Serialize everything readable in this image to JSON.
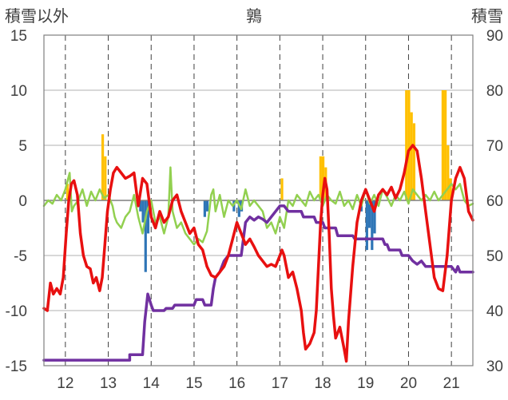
{
  "chart_data": {
    "type": "line",
    "title": "鶉",
    "left_axis_label": "積雪以外",
    "right_axis_label": "積雪",
    "y_left": {
      "min": -15,
      "max": 15,
      "ticks": [
        "-15",
        "-10",
        "-5",
        "0",
        "5",
        "10",
        "15"
      ]
    },
    "y_right": {
      "min": 30,
      "max": 90,
      "ticks": [
        "30",
        "40",
        "50",
        "60",
        "70",
        "80",
        "90"
      ]
    },
    "x": {
      "min": 11.5,
      "max": 21.5,
      "ticks": [
        "12",
        "13",
        "14",
        "15",
        "16",
        "17",
        "18",
        "19",
        "20",
        "21"
      ]
    },
    "grid": {
      "horizontal": true,
      "vertical_dashed": true
    },
    "series": [
      {
        "color": "#e81010",
        "axis": "left",
        "points": [
          [
            11.5,
            -9.8
          ],
          [
            11.58,
            -10
          ],
          [
            11.65,
            -7.5
          ],
          [
            11.72,
            -8.5
          ],
          [
            11.8,
            -8
          ],
          [
            11.88,
            -8.5
          ],
          [
            11.95,
            -7
          ],
          [
            12.02,
            -3
          ],
          [
            12.08,
            0
          ],
          [
            12.14,
            1.5
          ],
          [
            12.2,
            1.8
          ],
          [
            12.28,
            0.5
          ],
          [
            12.35,
            -3
          ],
          [
            12.42,
            -5
          ],
          [
            12.5,
            -6
          ],
          [
            12.58,
            -6.2
          ],
          [
            12.65,
            -7.5
          ],
          [
            12.72,
            -7
          ],
          [
            12.8,
            -8.2
          ],
          [
            12.86,
            -7
          ],
          [
            12.92,
            -4
          ],
          [
            12.98,
            -1
          ],
          [
            13.05,
            1
          ],
          [
            13.12,
            2.5
          ],
          [
            13.2,
            3
          ],
          [
            13.3,
            2.5
          ],
          [
            13.4,
            2
          ],
          [
            13.5,
            2.2
          ],
          [
            13.6,
            2.5
          ],
          [
            13.7,
            -0.5
          ],
          [
            13.8,
            2
          ],
          [
            13.9,
            1.5
          ],
          [
            14.0,
            -1.5
          ],
          [
            14.1,
            -2.5
          ],
          [
            14.2,
            -1
          ],
          [
            14.3,
            -2
          ],
          [
            14.4,
            -1.5
          ],
          [
            14.5,
            0
          ],
          [
            14.6,
            0.5
          ],
          [
            14.7,
            -1
          ],
          [
            14.8,
            -2
          ],
          [
            14.9,
            -3
          ],
          [
            15.0,
            -2.5
          ],
          [
            15.1,
            -4
          ],
          [
            15.2,
            -4.5
          ],
          [
            15.3,
            -6
          ],
          [
            15.4,
            -6.8
          ],
          [
            15.5,
            -7
          ],
          [
            15.6,
            -6.5
          ],
          [
            15.7,
            -6
          ],
          [
            15.8,
            -5
          ],
          [
            15.9,
            -3.5
          ],
          [
            16.0,
            -2
          ],
          [
            16.1,
            -3
          ],
          [
            16.2,
            -4
          ],
          [
            16.3,
            -3.5
          ],
          [
            16.4,
            -4.2
          ],
          [
            16.5,
            -5
          ],
          [
            16.6,
            -5.5
          ],
          [
            16.7,
            -6
          ],
          [
            16.8,
            -5.8
          ],
          [
            16.9,
            -6
          ],
          [
            17.0,
            -5
          ],
          [
            17.05,
            -4.5
          ],
          [
            17.1,
            -5
          ],
          [
            17.2,
            -7
          ],
          [
            17.3,
            -6.5
          ],
          [
            17.4,
            -8
          ],
          [
            17.5,
            -10
          ],
          [
            17.55,
            -12
          ],
          [
            17.6,
            -13.5
          ],
          [
            17.7,
            -13
          ],
          [
            17.8,
            -12
          ],
          [
            17.85,
            -10
          ],
          [
            17.9,
            -6
          ],
          [
            17.95,
            -2
          ],
          [
            18.0,
            0.5
          ],
          [
            18.05,
            2
          ],
          [
            18.1,
            1
          ],
          [
            18.15,
            -3
          ],
          [
            18.2,
            -8
          ],
          [
            18.25,
            -10.5
          ],
          [
            18.3,
            -12.5
          ],
          [
            18.4,
            -11.5
          ],
          [
            18.5,
            -13.5
          ],
          [
            18.55,
            -14.6
          ],
          [
            18.6,
            -11
          ],
          [
            18.7,
            -6
          ],
          [
            18.8,
            -2
          ],
          [
            18.9,
            0
          ],
          [
            19.0,
            1
          ],
          [
            19.1,
            0
          ],
          [
            19.2,
            -1
          ],
          [
            19.3,
            0.5
          ],
          [
            19.4,
            1
          ],
          [
            19.5,
            0.5
          ],
          [
            19.6,
            1.2
          ],
          [
            19.7,
            0.2
          ],
          [
            19.8,
            1
          ],
          [
            19.9,
            2.5
          ],
          [
            20.0,
            4.5
          ],
          [
            20.1,
            5
          ],
          [
            20.2,
            4.5
          ],
          [
            20.3,
            2
          ],
          [
            20.4,
            -1
          ],
          [
            20.5,
            -4
          ],
          [
            20.6,
            -7
          ],
          [
            20.7,
            -8
          ],
          [
            20.8,
            -8.2
          ],
          [
            20.9,
            -5
          ],
          [
            21.0,
            0
          ],
          [
            21.1,
            2
          ],
          [
            21.2,
            3
          ],
          [
            21.3,
            2
          ],
          [
            21.4,
            -1
          ],
          [
            21.5,
            -1.8
          ]
        ]
      },
      {
        "color": "#7030a0",
        "axis": "left",
        "points": [
          [
            11.5,
            -14.5
          ],
          [
            13.5,
            -14.5
          ],
          [
            13.5,
            -14
          ],
          [
            13.8,
            -14
          ],
          [
            13.85,
            -11
          ],
          [
            13.92,
            -8.5
          ],
          [
            14.0,
            -9.5
          ],
          [
            14.05,
            -10
          ],
          [
            14.3,
            -10
          ],
          [
            14.35,
            -9.8
          ],
          [
            14.5,
            -9.8
          ],
          [
            14.55,
            -9.5
          ],
          [
            15.0,
            -9.5
          ],
          [
            15.05,
            -9
          ],
          [
            15.2,
            -9
          ],
          [
            15.25,
            -9.5
          ],
          [
            15.4,
            -9.5
          ],
          [
            15.45,
            -8
          ],
          [
            15.5,
            -7
          ],
          [
            15.6,
            -6.5
          ],
          [
            15.7,
            -5.5
          ],
          [
            15.8,
            -5
          ],
          [
            16.1,
            -5
          ],
          [
            16.15,
            -3.5
          ],
          [
            16.2,
            -2
          ],
          [
            16.3,
            -1.5
          ],
          [
            16.4,
            -1.8
          ],
          [
            16.5,
            -1.5
          ],
          [
            16.6,
            -1.7
          ],
          [
            16.7,
            -2
          ],
          [
            16.8,
            -1.5
          ],
          [
            16.9,
            -1
          ],
          [
            17.0,
            -0.5
          ],
          [
            17.1,
            -0.5
          ],
          [
            17.2,
            -1
          ],
          [
            17.5,
            -1
          ],
          [
            17.55,
            -1.5
          ],
          [
            17.8,
            -1.5
          ],
          [
            17.85,
            -2
          ],
          [
            18.0,
            -2
          ],
          [
            18.05,
            -2.5
          ],
          [
            18.3,
            -2.5
          ],
          [
            18.35,
            -3.2
          ],
          [
            18.7,
            -3.2
          ],
          [
            18.75,
            -3.5
          ],
          [
            19.4,
            -3.5
          ],
          [
            19.45,
            -4
          ],
          [
            19.5,
            -4
          ],
          [
            19.55,
            -4.5
          ],
          [
            19.8,
            -4.5
          ],
          [
            19.85,
            -5
          ],
          [
            20.0,
            -5
          ],
          [
            20.1,
            -5.5
          ],
          [
            20.2,
            -5.8
          ],
          [
            20.3,
            -5.5
          ],
          [
            20.4,
            -6
          ],
          [
            21.0,
            -6
          ],
          [
            21.1,
            -6.5
          ],
          [
            21.15,
            -6
          ],
          [
            21.2,
            -6.5
          ],
          [
            21.5,
            -6.5
          ]
        ]
      },
      {
        "color": "#92d050",
        "axis": "left",
        "points": [
          [
            11.5,
            -0.5
          ],
          [
            11.6,
            0
          ],
          [
            11.7,
            -0.3
          ],
          [
            11.8,
            0.5
          ],
          [
            11.9,
            0
          ],
          [
            12.0,
            1
          ],
          [
            12.1,
            2.5
          ],
          [
            12.15,
            -1
          ],
          [
            12.2,
            -0.5
          ],
          [
            12.3,
            0
          ],
          [
            12.4,
            1
          ],
          [
            12.5,
            -0.5
          ],
          [
            12.6,
            0.8
          ],
          [
            12.7,
            0
          ],
          [
            12.8,
            1
          ],
          [
            12.9,
            0.2
          ],
          [
            13.0,
            0.5
          ],
          [
            13.1,
            -0.5
          ],
          [
            13.15,
            -1.5
          ],
          [
            13.2,
            -2
          ],
          [
            13.3,
            -2.5
          ],
          [
            13.4,
            -1.5
          ],
          [
            13.5,
            -1
          ],
          [
            13.6,
            0.5
          ],
          [
            13.7,
            -1.5
          ],
          [
            13.8,
            -3
          ],
          [
            13.9,
            -1
          ],
          [
            14.0,
            0
          ],
          [
            14.1,
            -2
          ],
          [
            14.2,
            -1.5
          ],
          [
            14.3,
            -3
          ],
          [
            14.4,
            -1.5
          ],
          [
            14.45,
            3
          ],
          [
            14.5,
            -1
          ],
          [
            14.6,
            -2.5
          ],
          [
            14.7,
            -2
          ],
          [
            14.8,
            -3
          ],
          [
            14.9,
            -3.5
          ],
          [
            15.0,
            -4
          ],
          [
            15.1,
            -3.5
          ],
          [
            15.2,
            -3.8
          ],
          [
            15.3,
            -2.8
          ],
          [
            15.4,
            0.5
          ],
          [
            15.45,
            1
          ],
          [
            15.5,
            -1
          ],
          [
            15.6,
            0.5
          ],
          [
            15.7,
            -1.5
          ],
          [
            15.8,
            0
          ],
          [
            15.9,
            -0.5
          ],
          [
            16.0,
            0
          ],
          [
            16.1,
            -0.8
          ],
          [
            16.2,
            1
          ],
          [
            16.3,
            -0.5
          ],
          [
            16.4,
            0
          ],
          [
            16.5,
            -0.5
          ],
          [
            16.6,
            -1
          ],
          [
            16.7,
            -2.5
          ],
          [
            16.8,
            -2
          ],
          [
            16.9,
            -3
          ],
          [
            17.0,
            -1.5
          ],
          [
            17.1,
            -2.5
          ],
          [
            17.2,
            0
          ],
          [
            17.3,
            -0.5
          ],
          [
            17.4,
            0.5
          ],
          [
            17.5,
            0
          ],
          [
            17.6,
            -0.5
          ],
          [
            17.7,
            0.8
          ],
          [
            17.8,
            0
          ],
          [
            17.9,
            0.5
          ],
          [
            18.0,
            -0.5
          ],
          [
            18.1,
            0.5
          ],
          [
            18.2,
            0
          ],
          [
            18.3,
            -0.3
          ],
          [
            18.4,
            0.8
          ],
          [
            18.5,
            -0.5
          ],
          [
            18.6,
            0
          ],
          [
            18.7,
            -0.8
          ],
          [
            18.8,
            0.5
          ],
          [
            18.9,
            -0.5
          ],
          [
            19.0,
            1
          ],
          [
            19.1,
            -0.3
          ],
          [
            19.2,
            0.5
          ],
          [
            19.3,
            -0.5
          ],
          [
            19.4,
            1
          ],
          [
            19.5,
            0.3
          ],
          [
            19.6,
            -0.5
          ],
          [
            19.7,
            0.5
          ],
          [
            19.8,
            0
          ],
          [
            19.9,
            0.8
          ],
          [
            20.0,
            -0.3
          ],
          [
            20.1,
            1
          ],
          [
            20.2,
            0.5
          ],
          [
            20.3,
            0
          ],
          [
            20.4,
            0.5
          ],
          [
            20.5,
            0
          ],
          [
            20.6,
            0.8
          ],
          [
            20.7,
            0
          ],
          [
            20.8,
            0.5
          ],
          [
            20.9,
            1
          ],
          [
            21.0,
            1.5
          ],
          [
            21.1,
            1
          ],
          [
            21.2,
            1.5
          ],
          [
            21.3,
            0
          ],
          [
            21.4,
            -0.5
          ],
          [
            21.5,
            -0.3
          ]
        ]
      }
    ],
    "bars": [
      {
        "color": "#ffc000",
        "axis": "left",
        "items": [
          [
            12.05,
            1.5
          ],
          [
            12.11,
            0.8
          ],
          [
            12.87,
            6
          ],
          [
            12.93,
            4
          ],
          [
            17.05,
            2
          ],
          [
            17.95,
            4
          ],
          [
            18.01,
            4
          ],
          [
            18.07,
            3
          ],
          [
            19.95,
            10
          ],
          [
            20.01,
            10
          ],
          [
            20.07,
            8
          ],
          [
            20.13,
            7
          ],
          [
            20.8,
            10
          ],
          [
            20.86,
            10
          ],
          [
            20.92,
            5
          ],
          [
            20.98,
            2
          ]
        ]
      },
      {
        "color": "#2e75b6",
        "axis": "left",
        "items": [
          [
            13.75,
            -1
          ],
          [
            13.81,
            -2
          ],
          [
            13.87,
            -6.5
          ],
          [
            13.93,
            -3
          ],
          [
            15.25,
            -1.5
          ],
          [
            15.31,
            -1
          ],
          [
            15.93,
            -1
          ],
          [
            16.05,
            -1.5
          ],
          [
            16.11,
            -1
          ],
          [
            18.9,
            -1
          ],
          [
            19.03,
            -4.5
          ],
          [
            19.09,
            -2.5
          ],
          [
            19.15,
            -4.5
          ],
          [
            19.21,
            -3
          ]
        ]
      }
    ]
  }
}
